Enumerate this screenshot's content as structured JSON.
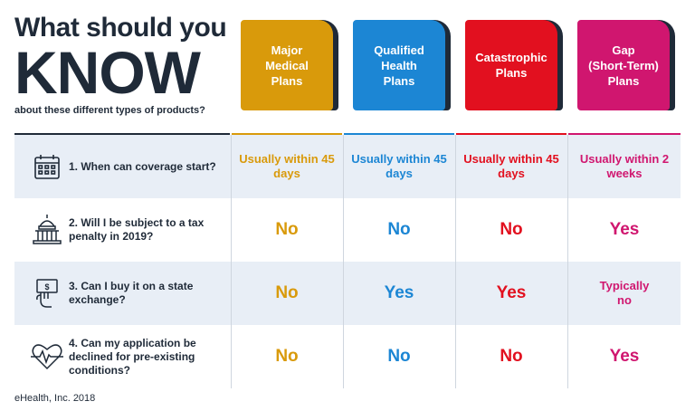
{
  "title": {
    "line1": "What should you",
    "line2": "KNOW",
    "line3": "about these different types of products?"
  },
  "plans": [
    {
      "label": "Major\nMedical\nPlans",
      "color": "#d99a0b"
    },
    {
      "label": "Qualified\nHealth\nPlans",
      "color": "#1c86d4"
    },
    {
      "label": "Catastrophic\nPlans",
      "color": "#e2101f"
    },
    {
      "label": "Gap\n(Short-Term)\nPlans",
      "color": "#d0166f"
    }
  ],
  "rows": [
    {
      "number": "1.",
      "question": "1. When can coverage start?",
      "icon": "calendar-icon",
      "answers": [
        "Usually within 45 days",
        "Usually within 45 days",
        "Usually within 45 days",
        "Usually within 2 weeks"
      ]
    },
    {
      "question": "2. Will I be subject to a tax penalty in 2019?",
      "icon": "capitol-building-icon",
      "answers": [
        "No",
        "No",
        "No",
        "Yes"
      ]
    },
    {
      "question": "3. Can I buy it on a state exchange?",
      "icon": "hand-money-icon",
      "answers": [
        "No",
        "Yes",
        "Yes",
        "Typically no"
      ]
    },
    {
      "question": "4. Can my application be declined for pre-existing conditions?",
      "icon": "heartbeat-icon",
      "answers": [
        "No",
        "No",
        "No",
        "Yes"
      ]
    }
  ],
  "footer": "eHealth, Inc. 2018"
}
